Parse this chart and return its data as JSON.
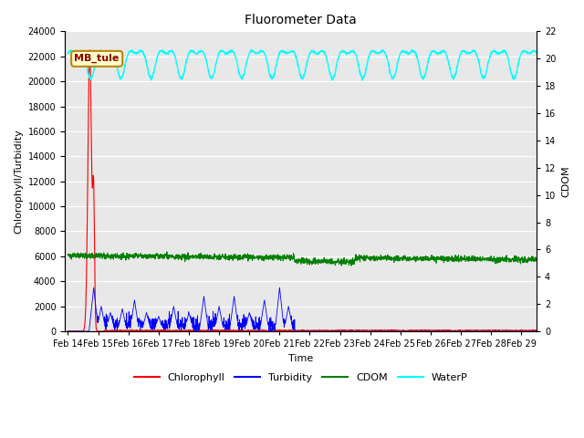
{
  "title": "Fluorometer Data",
  "xlabel": "Time",
  "ylabel_left": "Chlorophyll/Turbidity",
  "ylabel_right": "CDOM",
  "ylim_left": [
    0,
    24000
  ],
  "ylim_right": [
    0,
    22
  ],
  "annotation_text": "MB_tule",
  "bg_color": "#e8e8e8",
  "colors": {
    "Chlorophyll": "red",
    "Turbidity": "blue",
    "CDOM": "green",
    "WaterP": "cyan"
  },
  "xtick_labels": [
    "Feb 14",
    "Feb 15",
    "Feb 16",
    "Feb 17",
    "Feb 18",
    "Feb 19",
    "Feb 20",
    "Feb 21",
    "Feb 22",
    "Feb 23",
    "Feb 24",
    "Feb 25",
    "Feb 26",
    "Feb 27",
    "Feb 28",
    "Feb 29"
  ],
  "yticks_right": [
    0,
    2,
    4,
    6,
    8,
    10,
    12,
    14,
    16,
    18,
    20,
    22
  ],
  "yticks_left": [
    0,
    2000,
    4000,
    6000,
    8000,
    10000,
    12000,
    14000,
    16000,
    18000,
    20000,
    22000,
    24000
  ],
  "n_days": 15.5
}
